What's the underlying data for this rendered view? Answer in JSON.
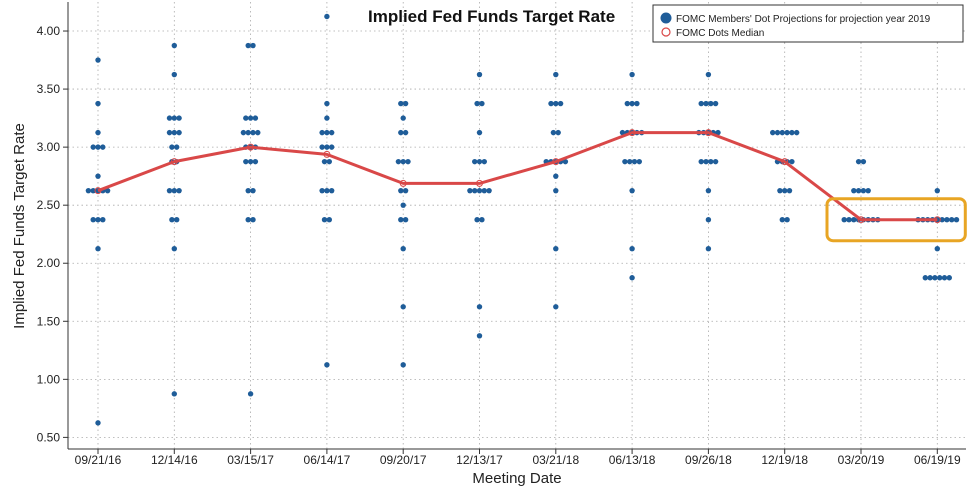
{
  "chart_data": {
    "type": "scatter",
    "title": "Implied Fed Funds Target Rate",
    "xlabel": "Meeting Date",
    "ylabel": "Implied Fed Funds Target Rate",
    "ylim": [
      0.4,
      4.25
    ],
    "yticks": [
      "0.50",
      "1.00",
      "1.50",
      "2.00",
      "2.50",
      "3.00",
      "3.50",
      "4.00"
    ],
    "categories": [
      "09/21/16",
      "12/14/16",
      "03/15/17",
      "06/14/17",
      "09/20/17",
      "12/13/17",
      "03/21/18",
      "06/13/18",
      "09/26/18",
      "12/19/18",
      "03/20/19",
      "06/19/19"
    ],
    "grid": true,
    "legend_position": "top-right",
    "colors": {
      "dots": "#1f5d99",
      "median": "#d94848",
      "highlight": "#e8a524",
      "grid": "#aaaaaa"
    },
    "series": [
      {
        "name": "FOMC Members' Dot Projections for projection year 2019",
        "kind": "dots",
        "points": [
          [
            [
              0.625,
              1
            ],
            [
              2.125,
              1
            ],
            [
              2.375,
              3
            ],
            [
              2.625,
              5
            ],
            [
              2.75,
              1
            ],
            [
              3.0,
              3
            ],
            [
              3.125,
              1
            ],
            [
              3.375,
              1
            ],
            [
              3.75,
              1
            ]
          ],
          [
            [
              0.875,
              1
            ],
            [
              2.125,
              1
            ],
            [
              2.375,
              2
            ],
            [
              2.625,
              3
            ],
            [
              2.875,
              2
            ],
            [
              3.0,
              2
            ],
            [
              3.125,
              3
            ],
            [
              3.25,
              3
            ],
            [
              3.625,
              1
            ],
            [
              3.875,
              1
            ]
          ],
          [
            [
              0.875,
              1
            ],
            [
              2.375,
              2
            ],
            [
              2.625,
              2
            ],
            [
              2.875,
              3
            ],
            [
              3.0,
              3
            ],
            [
              3.125,
              4
            ],
            [
              3.25,
              3
            ],
            [
              3.875,
              2
            ]
          ],
          [
            [
              1.125,
              1
            ],
            [
              2.375,
              2
            ],
            [
              2.625,
              3
            ],
            [
              2.875,
              2
            ],
            [
              3.0,
              3
            ],
            [
              3.125,
              3
            ],
            [
              3.25,
              1
            ],
            [
              3.375,
              1
            ],
            [
              4.125,
              1
            ]
          ],
          [
            [
              1.125,
              1
            ],
            [
              1.625,
              1
            ],
            [
              2.125,
              1
            ],
            [
              2.375,
              2
            ],
            [
              2.5,
              1
            ],
            [
              2.625,
              2
            ],
            [
              2.875,
              3
            ],
            [
              3.125,
              2
            ],
            [
              3.25,
              1
            ],
            [
              3.375,
              2
            ]
          ],
          [
            [
              1.375,
              1
            ],
            [
              1.625,
              1
            ],
            [
              2.375,
              2
            ],
            [
              2.625,
              5
            ],
            [
              2.875,
              3
            ],
            [
              3.125,
              1
            ],
            [
              3.375,
              2
            ],
            [
              3.625,
              1
            ]
          ],
          [
            [
              1.625,
              1
            ],
            [
              2.125,
              1
            ],
            [
              2.625,
              1
            ],
            [
              2.75,
              1
            ],
            [
              2.875,
              5
            ],
            [
              3.125,
              2
            ],
            [
              3.375,
              3
            ],
            [
              3.625,
              1
            ]
          ],
          [
            [
              1.875,
              1
            ],
            [
              2.125,
              1
            ],
            [
              2.625,
              1
            ],
            [
              2.875,
              4
            ],
            [
              3.125,
              5
            ],
            [
              3.375,
              3
            ],
            [
              3.625,
              1
            ]
          ],
          [
            [
              2.125,
              1
            ],
            [
              2.375,
              1
            ],
            [
              2.625,
              1
            ],
            [
              2.875,
              4
            ],
            [
              3.125,
              5
            ],
            [
              3.375,
              4
            ],
            [
              3.625,
              1
            ]
          ],
          [
            [
              2.375,
              2
            ],
            [
              2.625,
              3
            ],
            [
              2.875,
              4
            ],
            [
              3.125,
              6
            ]
          ],
          [
            [
              2.375,
              8
            ],
            [
              2.625,
              4
            ],
            [
              2.875,
              2
            ]
          ],
          [
            [
              1.875,
              6
            ],
            [
              2.125,
              1
            ],
            [
              2.375,
              9
            ],
            [
              2.625,
              1
            ]
          ]
        ]
      },
      {
        "name": "FOMC Dots Median",
        "kind": "median",
        "values": [
          2.625,
          2.875,
          3.0,
          2.9375,
          2.6875,
          2.6875,
          2.875,
          3.125,
          3.125,
          2.875,
          2.375,
          2.375
        ]
      }
    ],
    "highlight_range": [
      "03/20/19",
      "06/19/19"
    ]
  }
}
